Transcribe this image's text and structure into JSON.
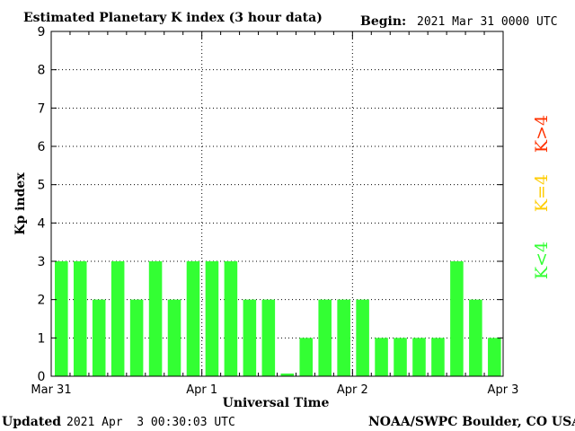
{
  "header": {
    "title": "Estimated Planetary K index (3 hour data)",
    "begin_label": "Begin:",
    "begin_value": "2021 Mar 31 0000 UTC"
  },
  "footer": {
    "updated_label": "Updated",
    "updated_value": "2021 Apr  3 00:30:03 UTC",
    "source": "NOAA/SWPC Boulder, CO USA"
  },
  "legend": {
    "items": [
      {
        "label": "K>4",
        "color": "#ff3300"
      },
      {
        "label": "K=4",
        "color": "#ffcc00"
      },
      {
        "label": "K<4",
        "color": "#33ff33"
      }
    ]
  },
  "chart_data": {
    "type": "bar",
    "title": "Estimated Planetary K index (3 hour data)",
    "xlabel": "Universal Time",
    "ylabel": "Kp index",
    "ylim": [
      0,
      9
    ],
    "yticks": [
      0,
      1,
      2,
      3,
      4,
      5,
      6,
      7,
      8,
      9
    ],
    "grid": true,
    "interval_hours": 3,
    "x_tick_labels": [
      "Mar 31",
      "Apr 1",
      "Apr 2",
      "Apr 3"
    ],
    "values": [
      3,
      3,
      2,
      3,
      2,
      3,
      2,
      3,
      3,
      3,
      2,
      2,
      0.07,
      1,
      2,
      2,
      2,
      1,
      1,
      1,
      1,
      3,
      2,
      1
    ],
    "bar_color": "#33ff33"
  }
}
